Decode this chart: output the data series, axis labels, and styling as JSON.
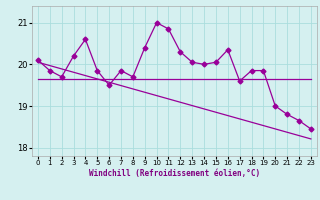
{
  "xlabel": "Windchill (Refroidissement éolien,°C)",
  "x_values": [
    0,
    1,
    2,
    3,
    4,
    5,
    6,
    7,
    8,
    9,
    10,
    11,
    12,
    13,
    14,
    15,
    16,
    17,
    18,
    19,
    20,
    21,
    22,
    23
  ],
  "line1_y": [
    20.1,
    19.85,
    19.7,
    20.2,
    20.6,
    19.85,
    19.5,
    19.85,
    19.7,
    20.4,
    21.0,
    20.85,
    20.3,
    20.05,
    20.0,
    20.05,
    20.35,
    19.6,
    19.85,
    19.85,
    19.0,
    18.8,
    18.65,
    18.45
  ],
  "regression_line_y": [
    20.05,
    19.97,
    19.89,
    19.81,
    19.73,
    19.65,
    19.57,
    19.49,
    19.41,
    19.33,
    19.25,
    19.17,
    19.09,
    19.01,
    18.93,
    18.85,
    18.77,
    18.69,
    18.61,
    18.53,
    18.45,
    18.37,
    18.29,
    18.21
  ],
  "flat_line_y": [
    19.65,
    19.65,
    19.65,
    19.65,
    19.65,
    19.65,
    19.65,
    19.65,
    19.65,
    19.65,
    19.65,
    19.65,
    19.65,
    19.65,
    19.65,
    19.65,
    19.65,
    19.65,
    19.65,
    19.65,
    19.65,
    19.65,
    19.65,
    19.65
  ],
  "line_color": "#990099",
  "bg_color": "#d5f0f0",
  "grid_color": "#aadddd",
  "ylim": [
    17.8,
    21.4
  ],
  "yticks": [
    18,
    19,
    20,
    21
  ],
  "xticks": [
    0,
    1,
    2,
    3,
    4,
    5,
    6,
    7,
    8,
    9,
    10,
    11,
    12,
    13,
    14,
    15,
    16,
    17,
    18,
    19,
    20,
    21,
    22,
    23
  ],
  "xlim": [
    -0.5,
    23.5
  ]
}
